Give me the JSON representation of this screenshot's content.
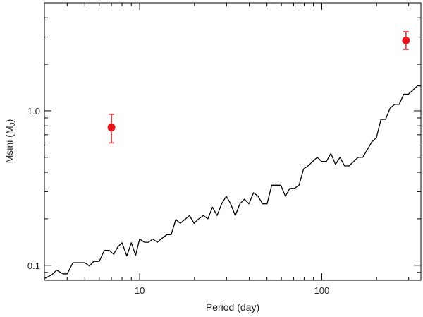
{
  "chart_data": {
    "type": "scatter",
    "xlabel": "Period (day)",
    "ylabel_main": "Msini (M",
    "ylabel_sub": "J",
    "ylabel_close": ")",
    "x_scale": "log",
    "y_scale": "log",
    "xlim": [
      3.0,
      350.0
    ],
    "ylim": [
      0.08,
      5.0
    ],
    "x_major_ticks": [
      {
        "value": 10,
        "label": "10"
      },
      {
        "value": 100,
        "label": "100"
      }
    ],
    "y_major_ticks": [
      {
        "value": 0.1,
        "label": "0.1"
      },
      {
        "value": 1.0,
        "label": "1.0"
      }
    ],
    "grid": false,
    "colors": {
      "line": "#000000",
      "points": "#e8141a"
    },
    "detection_limit": {
      "x": [
        3.0,
        3.3,
        3.5,
        3.8,
        4.0,
        4.3,
        4.7,
        5.0,
        5.3,
        5.6,
        6.0,
        6.4,
        6.8,
        7.2,
        7.6,
        8.0,
        8.5,
        9.0,
        9.5,
        10.0,
        10.6,
        11.2,
        11.8,
        12.5,
        13.3,
        14.1,
        14.9,
        15.8,
        16.7,
        17.7,
        18.8,
        19.9,
        21.1,
        22.4,
        23.7,
        25.1,
        26.6,
        28.2,
        29.9,
        31.6,
        33.5,
        35.5,
        37.6,
        39.8,
        42.2,
        44.7,
        47.3,
        50.1,
        53.1,
        56.2,
        59.6,
        63.1,
        66.8,
        70.8,
        75.0,
        79.4,
        84.1,
        89.1,
        94.4,
        100.0,
        105.9,
        112.2,
        118.9,
        125.9,
        133.4,
        141.3,
        149.6,
        158.5,
        167.9,
        177.8,
        188.4,
        199.5,
        211.3,
        223.9,
        237.1,
        251.2,
        266.1,
        281.8,
        298.5,
        316.2,
        335.0,
        350.0
      ],
      "y": [
        0.082,
        0.087,
        0.093,
        0.088,
        0.088,
        0.104,
        0.104,
        0.104,
        0.099,
        0.106,
        0.106,
        0.125,
        0.125,
        0.118,
        0.132,
        0.14,
        0.115,
        0.14,
        0.116,
        0.148,
        0.141,
        0.141,
        0.148,
        0.141,
        0.15,
        0.158,
        0.158,
        0.198,
        0.187,
        0.198,
        0.21,
        0.187,
        0.2,
        0.21,
        0.2,
        0.238,
        0.21,
        0.25,
        0.28,
        0.25,
        0.21,
        0.25,
        0.268,
        0.25,
        0.295,
        0.28,
        0.25,
        0.25,
        0.33,
        0.33,
        0.33,
        0.28,
        0.315,
        0.315,
        0.33,
        0.42,
        0.44,
        0.47,
        0.5,
        0.47,
        0.47,
        0.53,
        0.45,
        0.5,
        0.44,
        0.44,
        0.47,
        0.5,
        0.5,
        0.56,
        0.63,
        0.67,
        0.88,
        0.88,
        1.04,
        1.1,
        1.1,
        1.28,
        1.28,
        1.36,
        1.45,
        1.45
      ]
    },
    "points": [
      {
        "x": 7.0,
        "y": 0.78,
        "y_err_low": 0.62,
        "y_err_high": 0.95
      },
      {
        "x": 290.0,
        "y": 2.85,
        "y_err_low": 2.5,
        "y_err_high": 3.25
      }
    ]
  }
}
